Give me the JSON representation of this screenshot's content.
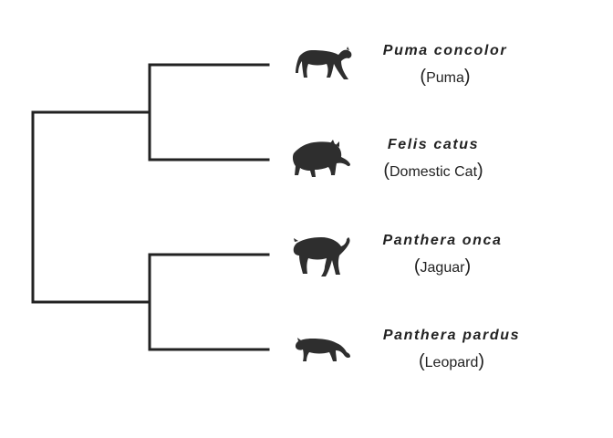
{
  "colors": {
    "branch": "#222222",
    "silhouette": "#2e2e2e",
    "text": "#222222"
  },
  "taxa": [
    {
      "scientific": "Puma concolor",
      "common": "Puma",
      "icon": "puma-silhouette-icon"
    },
    {
      "scientific": "Felis catus",
      "common": "Domestic Cat",
      "icon": "domestic-cat-silhouette-icon"
    },
    {
      "scientific": "Panthera onca",
      "common": "Jaguar",
      "icon": "jaguar-silhouette-icon"
    },
    {
      "scientific": "Panthera pardus",
      "common": "Leopard",
      "icon": "leopard-silhouette-icon"
    }
  ],
  "clades": [
    {
      "members": [
        "Puma concolor",
        "Felis catus"
      ]
    },
    {
      "members": [
        "Panthera onca",
        "Panthera pardus"
      ]
    },
    {
      "members": [
        "Puma concolor",
        "Felis catus",
        "Panthera onca",
        "Panthera pardus"
      ]
    }
  ]
}
